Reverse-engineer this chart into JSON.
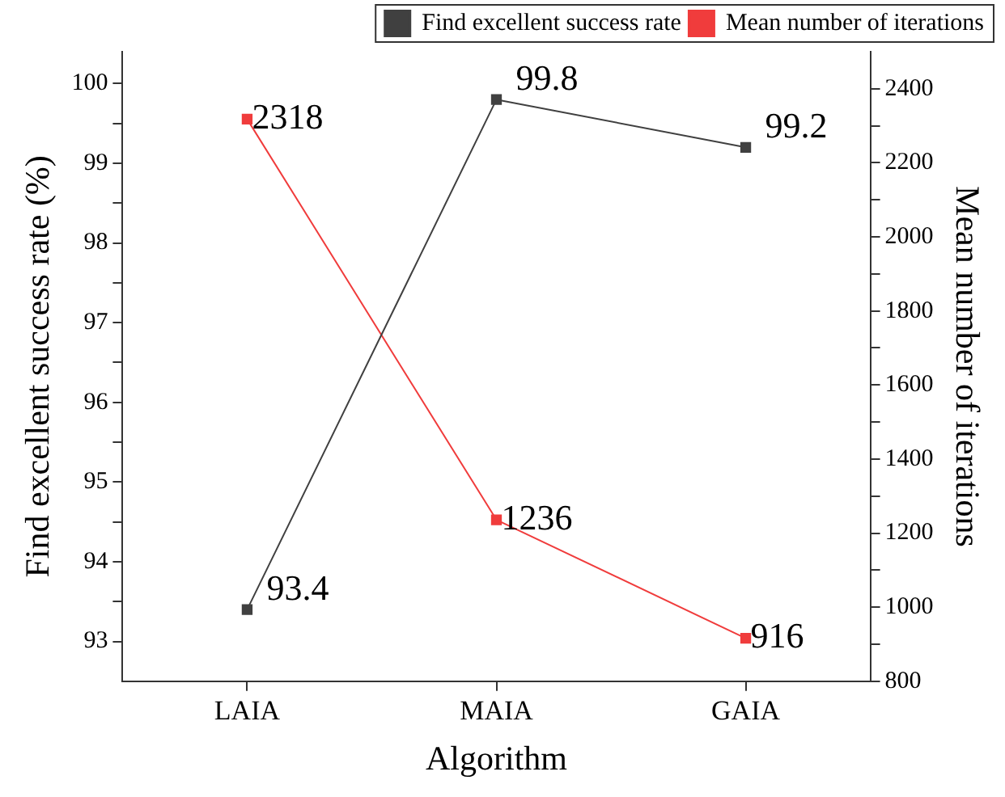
{
  "chart_data": {
    "type": "line",
    "xlabel": "Algorithm",
    "ylabel": "Find excellent success rate (%)",
    "y2label": "Mean number of iterations",
    "categories": [
      "LAIA",
      "MAIA",
      "GAIA"
    ],
    "series": [
      {
        "name": "Find excellent success rate",
        "color": "#404040",
        "values": [
          93.4,
          99.8,
          99.2
        ]
      },
      {
        "name": "Mean number of iterations",
        "color": "#f03c3c",
        "values": [
          2318,
          1236,
          916
        ],
        "axis": "y2"
      }
    ],
    "ylim": [
      92.5,
      100.4
    ],
    "yticks": [
      93,
      {
        "value": 93.5,
        "label": null
      },
      94,
      {
        "value": 94.5,
        "label": null
      },
      95,
      {
        "value": 95.5,
        "label": null
      },
      96,
      {
        "value": 96.5,
        "label": null
      },
      97,
      {
        "value": 97.5,
        "label": null
      },
      98,
      {
        "value": 98.5,
        "label": null
      },
      99,
      {
        "value": 99.5,
        "label": null
      },
      100
    ],
    "y2lim": [
      800,
      2500
    ],
    "y2ticks": [
      800,
      {
        "value": 900,
        "label": null
      },
      1000,
      {
        "value": 1100,
        "label": null
      },
      1200,
      {
        "value": 1300,
        "label": null
      },
      1400,
      {
        "value": 1500,
        "label": null
      },
      1600,
      {
        "value": 1700,
        "label": null
      },
      1800,
      {
        "value": 1900,
        "label": null
      },
      2000,
      {
        "value": 2100,
        "label": null
      },
      2200,
      {
        "value": 2300,
        "label": null
      },
      2400
    ],
    "data_labels": true,
    "legend": "top right",
    "grid": false,
    "marker": "square",
    "line_style": "solid"
  }
}
